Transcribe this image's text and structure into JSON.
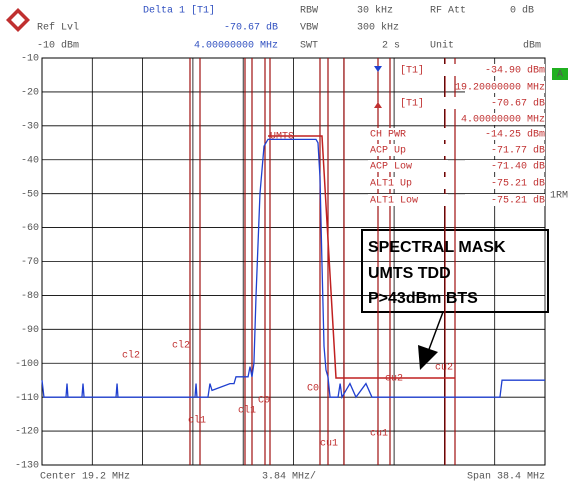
{
  "chart_data": {
    "type": "line",
    "header": [
      "Delta 1 [T1]",
      "RBW",
      "30 kHz",
      "RF Att",
      "0 dB",
      "Ref Lvl",
      "-70.67 dB",
      "VBW",
      "300 kHz",
      "-10 dBm",
      "4.00000000 MHz",
      "SWT",
      "2 s",
      "Unit",
      "dBm"
    ],
    "marker_info": [
      "[T1]",
      "-34.90 dBm",
      "19.20000000 MHz",
      "[T1]",
      "-70.67 dB",
      "4.00000000 MHz",
      "CH PWR",
      "-14.25 dBm",
      "ACP Up",
      "-71.77 dB",
      "ACP Low",
      "-71.40 dB",
      "ALT1 Up",
      "-75.21 dB",
      "ALT1 Low",
      "-75.21 dB"
    ],
    "footer": [
      "Center 19.2 MHz",
      "3.84 MHz/",
      "Span 38.4 MHz"
    ],
    "side_labels": [
      "A",
      "1RM"
    ],
    "mask_label": "UMTS",
    "channel_labels": [
      "cl2",
      "cl2",
      "cl1",
      "cl1",
      "C0",
      "C0",
      "cu1",
      "cu1",
      "cu2",
      "cu2"
    ],
    "callout": [
      "SPECTRAL MASK",
      "UMTS TDD",
      "P>43dBm BTS"
    ],
    "series": [
      {
        "color": "#2040d0",
        "x": [
          0,
          0.15,
          1.83,
          1.91,
          1.98,
          3.05,
          3.13,
          3.21,
          5.65,
          5.73,
          5.8,
          11.68,
          11.76,
          11.83,
          12.67,
          12.82,
          12.98,
          14.35,
          14.66,
          14.81,
          15.73,
          15.88,
          16.03,
          16.18,
          16.34,
          16.64,
          16.95,
          17.25,
          20.92,
          21.07,
          21.22,
          21.37,
          21.53,
          21.68,
          21.83,
          21.99,
          22.6,
          22.76,
          22.9,
          23.51,
          23.97,
          24.73,
          25.19,
          34.96,
          35.12,
          38.4
        ],
        "values": [
          -105,
          -110,
          -110,
          -106,
          -110,
          -110,
          -106,
          -110,
          -110,
          -106,
          -110,
          -110,
          -106,
          -110,
          -110,
          -106,
          -108,
          -106,
          -106,
          -104,
          -104,
          -101,
          -104,
          -100,
          -80,
          -50,
          -36,
          -34,
          -34,
          -35,
          -45,
          -70,
          -95,
          -102,
          -104,
          -110,
          -110,
          -106,
          -110,
          -106,
          -110,
          -106,
          -110,
          -110,
          -105,
          -105
        ]
      }
    ],
    "xlim": [
      0,
      38.4
    ],
    "xticks": [
      0,
      3.84,
      7.68,
      11.52,
      15.36,
      19.2,
      23.04,
      26.88,
      30.72,
      34.56,
      38.4
    ],
    "ylim": [
      -130,
      -10
    ],
    "yticks": [
      -10,
      -20,
      -30,
      -40,
      -50,
      -60,
      -70,
      -80,
      -90,
      -100,
      -110,
      -120,
      -130
    ],
    "grid": true
  }
}
